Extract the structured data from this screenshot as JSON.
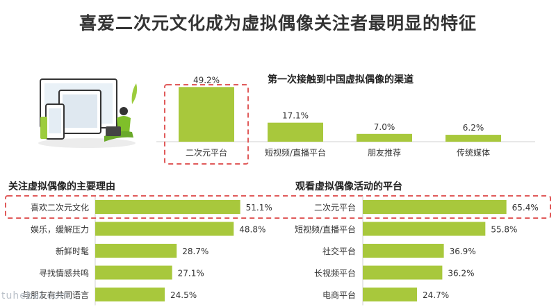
{
  "title": "喜爱二次元文化成为虚拟偶像关注者最明显的特征",
  "watermark": "tuhebai.com",
  "colors": {
    "bar": "#a8c83c",
    "highlight": "#e05a5a",
    "text": "#333333"
  },
  "illustration": "person-with-devices-illustration",
  "chart_data": [
    {
      "type": "bar",
      "orientation": "vertical",
      "title": "第一次接触到中国虚拟偶像的渠道",
      "categories": [
        "二次元平台",
        "短视频/直播平台",
        "朋友推荐",
        "传统媒体"
      ],
      "values": [
        49.2,
        17.1,
        7.0,
        6.2
      ],
      "value_labels": [
        "49.2%",
        "17.1%",
        "7.0%",
        "6.2%"
      ],
      "ylim": [
        0,
        60
      ],
      "highlight_index": 0,
      "grid": false
    },
    {
      "type": "bar",
      "orientation": "horizontal",
      "title": "关注虚拟偶像的主要理由",
      "categories": [
        "喜欢二次元文化",
        "娱乐，缓解压力",
        "新鲜时髦",
        "寻找情感共鸣",
        "与朋友有共同语言"
      ],
      "values": [
        51.1,
        48.8,
        28.7,
        27.1,
        24.5
      ],
      "value_labels": [
        "51.1%",
        "48.8%",
        "28.7%",
        "27.1%",
        "24.5%"
      ],
      "xlim": [
        0,
        60
      ],
      "highlight_index": 0,
      "grid": false
    },
    {
      "type": "bar",
      "orientation": "horizontal",
      "title": "观看虚拟偶像活动的平台",
      "categories": [
        "二次元平台",
        "短视频/直播平台",
        "社交平台",
        "长视频平台",
        "电商平台"
      ],
      "values": [
        65.4,
        55.8,
        36.9,
        36.2,
        24.7
      ],
      "value_labels": [
        "65.4%",
        "55.8%",
        "36.9%",
        "36.2%",
        "24.7%"
      ],
      "xlim": [
        0,
        75
      ],
      "highlight_index": 0,
      "grid": false
    }
  ]
}
